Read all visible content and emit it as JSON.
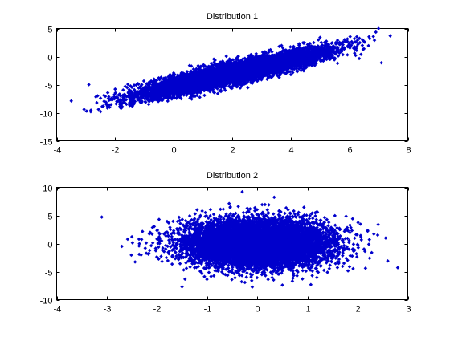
{
  "chart_data": [
    {
      "type": "scatter",
      "title": "Distribution 1",
      "xlabel": "",
      "ylabel": "",
      "xlim": [
        -4,
        8
      ],
      "ylim": [
        -15,
        5
      ],
      "xticks": [
        -4,
        -2,
        0,
        2,
        4,
        6,
        8
      ],
      "yticks": [
        -15,
        -10,
        -5,
        0,
        5
      ],
      "xtick_labels": [
        "-4",
        "-2",
        "0",
        "2",
        "4",
        "6",
        "8"
      ],
      "ytick_labels": [
        "-15",
        "-10",
        "-5",
        "0",
        "5"
      ],
      "grid": false,
      "marker_color": "#0000cc",
      "marker_shape": "diamond",
      "points_summary": {
        "count": 10000,
        "x_mean": 2.0,
        "x_std": 1.5,
        "y_mean": -3.0,
        "y_std": 2.0,
        "correlation": 0.9
      },
      "points": [
        [
          -3.5,
          -7.9
        ],
        [
          7.0,
          5.0
        ],
        [
          7.4,
          3.7
        ],
        [
          6.7,
          3.2
        ],
        [
          7.1,
          -1.1
        ],
        [
          -2.5,
          -9.8
        ],
        [
          -2.9,
          -5.0
        ],
        [
          -2.2,
          -8.6
        ],
        [
          6.0,
          1.8
        ],
        [
          6.4,
          0.4
        ],
        [
          -1.8,
          -9.2
        ],
        [
          5.6,
          -1.2
        ],
        [
          -2.6,
          -7.0
        ],
        [
          6.2,
          2.6
        ],
        [
          -2.0,
          -5.8
        ]
      ]
    },
    {
      "type": "scatter",
      "title": "Distribution 2",
      "xlabel": "",
      "ylabel": "",
      "xlim": [
        -4,
        3
      ],
      "ylim": [
        -10,
        10
      ],
      "xticks": [
        -4,
        -3,
        -2,
        -1,
        0,
        1,
        2,
        3
      ],
      "yticks": [
        -10,
        -5,
        0,
        5,
        10
      ],
      "xtick_labels": [
        "-4",
        "-3",
        "-2",
        "-1",
        "0",
        "1",
        "2",
        "3"
      ],
      "ytick_labels": [
        "-10",
        "-5",
        "0",
        "5",
        "10"
      ],
      "grid": false,
      "marker_color": "#0000cc",
      "marker_shape": "diamond",
      "points_summary": {
        "count": 10000,
        "x_mean": 0.0,
        "x_std": 0.7,
        "y_mean": 0.0,
        "y_std": 2.0,
        "correlation": 0.0
      },
      "points": [
        [
          -3.1,
          4.7
        ],
        [
          -2.7,
          -0.5
        ],
        [
          2.6,
          -3.1
        ],
        [
          2.2,
          2.2
        ],
        [
          -0.3,
          9.2
        ],
        [
          -1.5,
          -7.7
        ],
        [
          2.8,
          -4.3
        ],
        [
          -2.5,
          1.2
        ],
        [
          0.5,
          -7.4
        ],
        [
          -2.0,
          0.8
        ],
        [
          2.4,
          1.5
        ],
        [
          -1.9,
          -3.2
        ],
        [
          1.9,
          4.4
        ],
        [
          0.9,
          -6.3
        ],
        [
          -1.2,
          6.0
        ]
      ]
    }
  ]
}
